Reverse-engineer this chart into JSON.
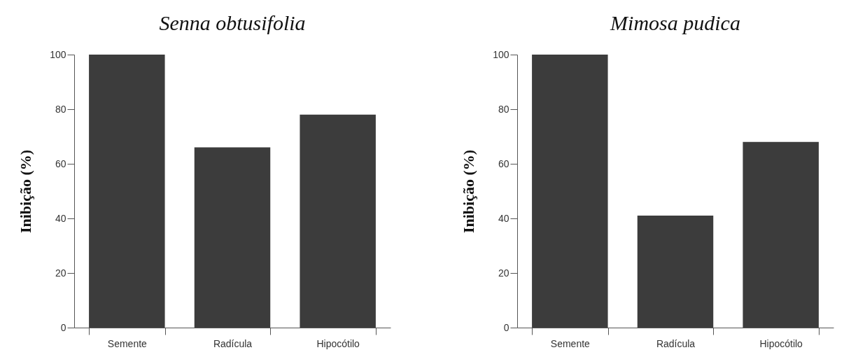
{
  "chart_data": [
    {
      "type": "bar",
      "title": "Senna obtusifolia",
      "ylabel": "Inibição (%)",
      "categories": [
        "Semente",
        "Radícula",
        "Hipocótilo"
      ],
      "values": [
        100,
        66,
        78
      ],
      "color": "#3c3c3c",
      "ylim": [
        0,
        100
      ],
      "yticks": [
        0,
        20,
        40,
        60,
        80,
        100
      ]
    },
    {
      "type": "bar",
      "title": "Mimosa pudica",
      "ylabel": "Inibição (%)",
      "categories": [
        "Semente",
        "Radícula",
        "Hipocótilo"
      ],
      "values": [
        100,
        41,
        68
      ],
      "color": "#3c3c3c",
      "ylim": [
        0,
        100
      ],
      "yticks": [
        0,
        20,
        40,
        60,
        80,
        100
      ]
    }
  ]
}
